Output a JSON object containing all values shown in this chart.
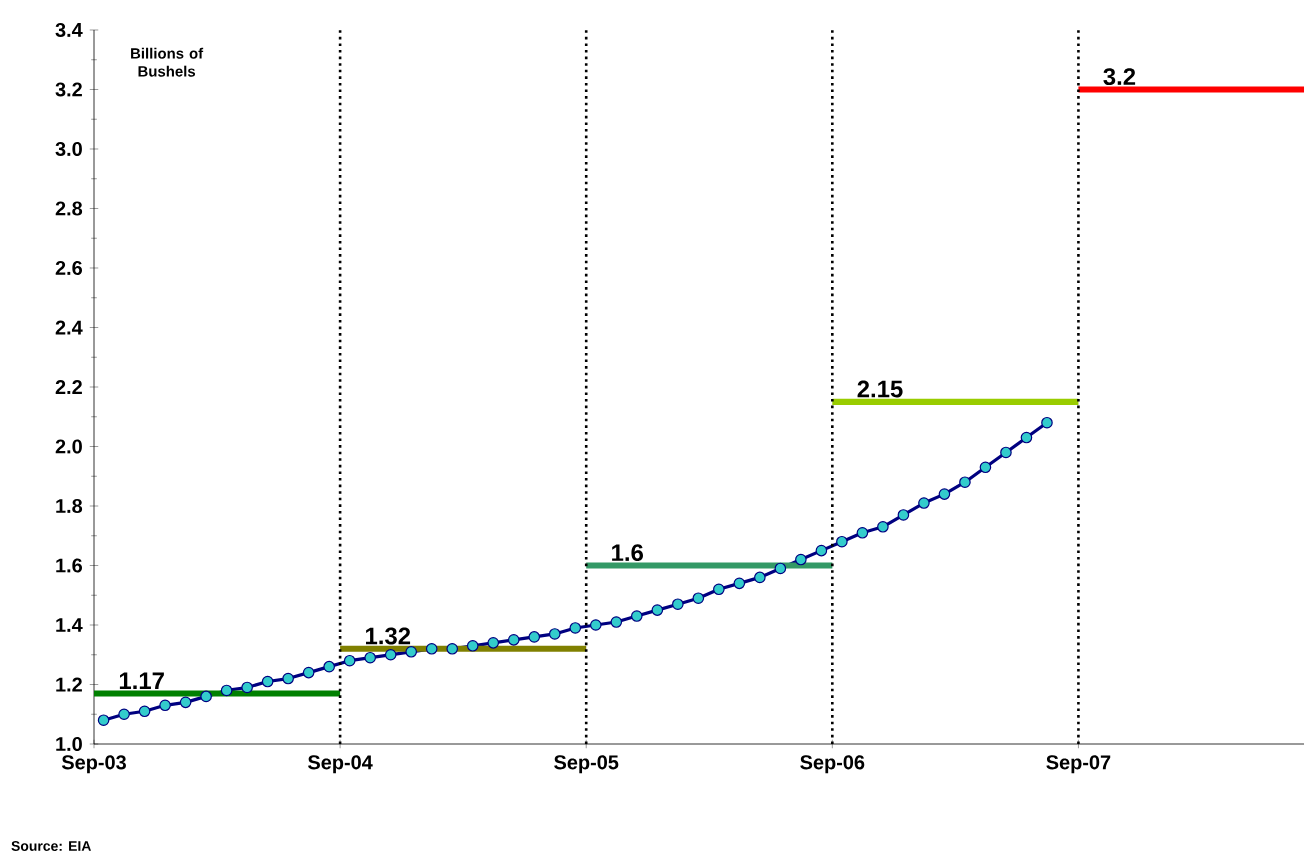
{
  "chart_data": {
    "type": "line",
    "ylabel": "Billions of Bushels",
    "annotations": [
      "Source: EIA"
    ],
    "x": [
      "2003-09-15",
      "2003-10-15",
      "2003-11-15",
      "2003-12-15",
      "2004-01-15",
      "2004-02-15",
      "2004-03-15",
      "2004-04-15",
      "2004-05-15",
      "2004-06-15",
      "2004-07-15",
      "2004-08-15",
      "2004-09-15",
      "2004-10-15",
      "2004-11-15",
      "2004-12-15",
      "2005-01-15",
      "2005-02-15",
      "2005-03-15",
      "2005-04-15",
      "2005-05-15",
      "2005-06-15",
      "2005-07-15",
      "2005-08-15",
      "2005-09-15",
      "2005-10-15",
      "2005-11-15",
      "2005-12-15",
      "2006-01-15",
      "2006-02-15",
      "2006-03-15",
      "2006-04-15",
      "2006-05-15",
      "2006-06-15",
      "2006-07-15",
      "2006-08-15",
      "2006-09-15",
      "2006-10-15",
      "2006-11-15",
      "2006-12-15",
      "2007-01-15",
      "2007-02-15",
      "2007-03-15",
      "2007-04-15",
      "2007-05-15",
      "2007-06-15",
      "2007-07-15"
    ],
    "series": [
      {
        "color": "#000080",
        "colors": [
          "#33cccc",
          "#33cccc",
          "#33cccc",
          "#33cccc",
          "#33cccc",
          "#33cccc",
          "#33cccc",
          "#33cccc",
          "#33cccc",
          "#33cccc",
          "#33cccc",
          "#33cccc",
          "#33cccc",
          "#33cccc",
          "#33cccc",
          "#33cccc",
          "#33cccc",
          "#33cccc",
          "#33cccc",
          "#33cccc",
          "#33cccc",
          "#33cccc",
          "#33cccc",
          "#33cccc",
          "#33cccc",
          "#33cccc",
          "#33cccc",
          "#33cccc",
          "#33cccc",
          "#33cccc",
          "#33cccc",
          "#33cccc",
          "#33cccc",
          "#33cccc",
          "#33cccc",
          "#33cccc",
          "#33cccc",
          "#33cccc",
          "#33cccc",
          "#33cccc",
          "#33cccc",
          "#33cccc",
          "#33cccc",
          "#33cccc",
          "#33cccc",
          "#33cccc",
          "#33cccc"
        ],
        "values": [
          1.08,
          1.1,
          1.11,
          1.13,
          1.14,
          1.16,
          1.18,
          1.19,
          1.21,
          1.22,
          1.24,
          1.26,
          1.28,
          1.29,
          1.3,
          1.31,
          1.32,
          1.32,
          1.33,
          1.34,
          1.35,
          1.36,
          1.37,
          1.39,
          1.4,
          1.41,
          1.43,
          1.45,
          1.47,
          1.49,
          1.52,
          1.54,
          1.56,
          1.59,
          1.62,
          1.65,
          1.68,
          1.71,
          1.73,
          1.77,
          1.81,
          1.84,
          1.88,
          1.93,
          1.98,
          2.03,
          2.08
        ]
      },
      {
        "color": "#008000",
        "marker": "none",
        "x": [
          "2003-09",
          "2004-09"
        ],
        "values": [
          1.17,
          1.17
        ],
        "value_labels": [
          "1.17",
          null
        ]
      },
      {
        "color": "#808000",
        "marker": "none",
        "x": [
          "2004-09",
          "2005-09"
        ],
        "values": [
          1.32,
          1.32
        ],
        "value_labels": [
          "1.32",
          null
        ]
      },
      {
        "color": "#339966",
        "marker": "none",
        "x": [
          "2005-09",
          "2006-09"
        ],
        "values": [
          1.6,
          1.6
        ],
        "value_labels": [
          "1.6",
          null
        ]
      },
      {
        "color": "#99cc00",
        "marker": "none",
        "x": [
          "2006-09",
          "2007-09"
        ],
        "values": [
          2.15,
          2.15
        ],
        "value_labels": [
          "2.15",
          null
        ]
      },
      {
        "color": "#ff0000",
        "marker": "none",
        "x": [
          "2007-09",
          "2008-08"
        ],
        "values": [
          3.2,
          3.2
        ],
        "value_labels": [
          "3.2",
          null
        ]
      }
    ],
    "xlim": [
      "2003-09",
      "2008-08"
    ],
    "xticks": [
      {
        "value": "2003-09",
        "label": "Sep-03"
      },
      {
        "value": "2004-09",
        "label": "Sep-04"
      },
      {
        "value": "2005-09",
        "label": "Sep-05"
      },
      {
        "value": "2006-09",
        "label": "Sep-06"
      },
      {
        "value": "2007-09",
        "label": "Sep-07"
      }
    ],
    "ylim": [
      1.0,
      3.4
    ],
    "yticks": [
      {
        "value": 1.0,
        "label": "1.0"
      },
      {
        "value": 1.2,
        "label": "1.2"
      },
      {
        "value": 1.4,
        "label": "1.4"
      },
      {
        "value": 1.6,
        "label": "1.6"
      },
      {
        "value": 1.8,
        "label": "1.8"
      },
      {
        "value": 2.0,
        "label": "2.0"
      },
      {
        "value": 2.2,
        "label": "2.2"
      },
      {
        "value": 2.4,
        "label": "2.4"
      },
      {
        "value": 2.6,
        "label": "2.6"
      },
      {
        "value": 2.8,
        "label": "2.8"
      },
      {
        "value": 3.0,
        "label": "3.0"
      },
      {
        "value": 3.2,
        "label": "3.2"
      },
      {
        "value": 3.4,
        "label": "3.4"
      }
    ],
    "ref_lines": [
      {
        "axis": "x",
        "value": "2004-09",
        "color": "#000000",
        "line_style": "dotted"
      },
      {
        "axis": "x",
        "value": "2005-09",
        "color": "#000000",
        "line_style": "dotted"
      },
      {
        "axis": "x",
        "value": "2006-09",
        "color": "#000000",
        "line_style": "dotted"
      },
      {
        "axis": "x",
        "value": "2007-09",
        "color": "#000000",
        "line_style": "dotted"
      }
    ],
    "grid": false,
    "line_style": "solid",
    "marker": "circle"
  }
}
